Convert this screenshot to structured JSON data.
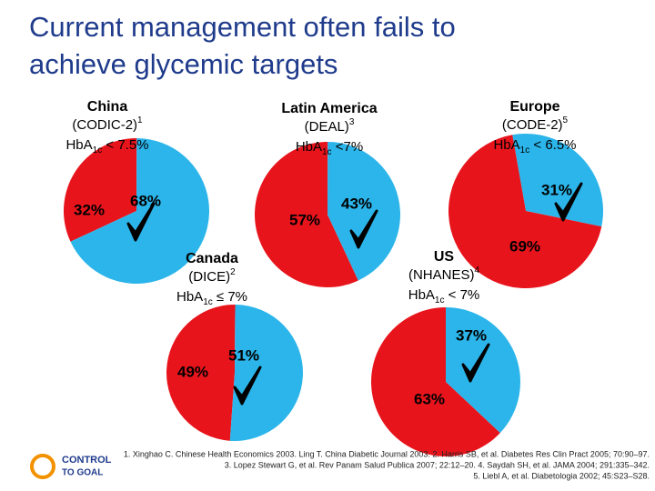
{
  "title": [
    "Current management often fails to",
    "achieve glycemic targets"
  ],
  "chart_data": [
    {
      "type": "pie",
      "title": "China",
      "study": "(CODIC-2)",
      "ref": "1",
      "target": {
        "text": "HbA",
        "sub": "1c",
        "rest": " < 7.5%"
      },
      "categories": [
        null,
        null
      ],
      "values": [
        32,
        68
      ],
      "value_labels": [
        "32%",
        "68%"
      ],
      "colors": [
        "#e8141c",
        "#2bb5ea"
      ]
    },
    {
      "type": "pie",
      "title": "Latin America",
      "study": "(DEAL)",
      "ref": "3",
      "target": {
        "text": "HbA",
        "sub": "1c",
        "rest": " <7%"
      },
      "categories": [
        null,
        null
      ],
      "values": [
        57,
        43
      ],
      "value_labels": [
        "57%",
        "43%"
      ],
      "colors": [
        "#e8141c",
        "#2bb5ea"
      ]
    },
    {
      "type": "pie",
      "title": "Europe",
      "study": "(CODE-2)",
      "ref": "5",
      "target": {
        "text": "HbA",
        "sub": "1c",
        "rest": " < 6.5%"
      },
      "categories": [
        null,
        null
      ],
      "values": [
        31,
        69
      ],
      "value_labels": [
        "31%",
        "69%"
      ],
      "colors": [
        "#2bb5ea",
        "#e8141c"
      ]
    },
    {
      "type": "pie",
      "title": "Canada",
      "study": "(DICE)",
      "ref": "2",
      "target": {
        "text": "HbA",
        "sub": "1c",
        "rest": " ≤ 7%"
      },
      "categories": [
        null,
        null
      ],
      "values": [
        49,
        51
      ],
      "value_labels": [
        "49%",
        "51%"
      ],
      "colors": [
        "#e8141c",
        "#2bb5ea"
      ]
    },
    {
      "type": "pie",
      "title": "US",
      "study": "(NHANES)",
      "ref": "4",
      "target": {
        "text": "HbA",
        "sub": "1c",
        "rest": " < 7%"
      },
      "categories": [
        null,
        null
      ],
      "values": [
        37,
        63
      ],
      "value_labels": [
        "37%",
        "63%"
      ],
      "colors": [
        "#2bb5ea",
        "#e8141c"
      ]
    }
  ],
  "footnotes": [
    "1. Xinghao C. Chinese Health Economics 2003. Ling T. China Diabetic Journal 2003. 2. Harris SB, et al. Diabetes Res Clin Pract 2005; 70:90–97.",
    "3. Lopez Stewart G, et al. Rev Panam Salud Publica 2007; 22:12–20. 4. Saydah SH, et al. JAMA 2004; 291:335–342.",
    "5. Liebl A, et al. Diabetologia 2002; 45:S23–S28."
  ],
  "logo": [
    "CONTROL",
    "TO GOAL"
  ]
}
